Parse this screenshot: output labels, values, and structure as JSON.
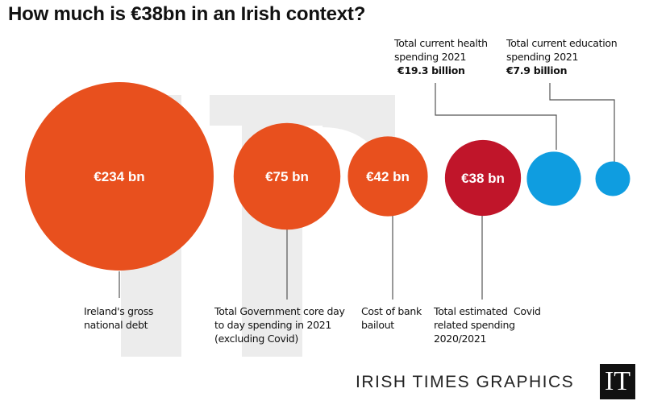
{
  "title": "How much is €38bn in an Irish context?",
  "chart_data": {
    "type": "bubble",
    "title": "How much is €38bn in an Irish context?",
    "items": [
      {
        "value": 234,
        "unit": "bn",
        "value_label": "€234 bn",
        "label": "Ireland's gross\nnational debt",
        "color": "#e8501e"
      },
      {
        "value": 75,
        "unit": "bn",
        "value_label": "€75 bn",
        "label": "Total Government core day\nto day spending in 2021\n(excluding Covid)",
        "color": "#e8501e"
      },
      {
        "value": 42,
        "unit": "bn",
        "value_label": "€42 bn",
        "label": "Cost of bank\nbailout",
        "color": "#e8501e"
      },
      {
        "value": 38,
        "unit": "bn",
        "value_label": "€38 bn",
        "label": "Total estimated  Covid\nrelated spending\n2020/2021",
        "color": "#c0152a"
      },
      {
        "value": 19.3,
        "unit": "bn",
        "value_label": "€19.3 billion",
        "label": "Total current health\nspending 2021",
        "color": "#0f9de0"
      },
      {
        "value": 7.9,
        "unit": "bn",
        "value_label": "€7.9 billion",
        "label": "Total current education\nspending 2021",
        "color": "#0f9de0"
      }
    ]
  },
  "footer": {
    "credit": "IRISH TIMES GRAPHICS",
    "logo": "IT"
  }
}
